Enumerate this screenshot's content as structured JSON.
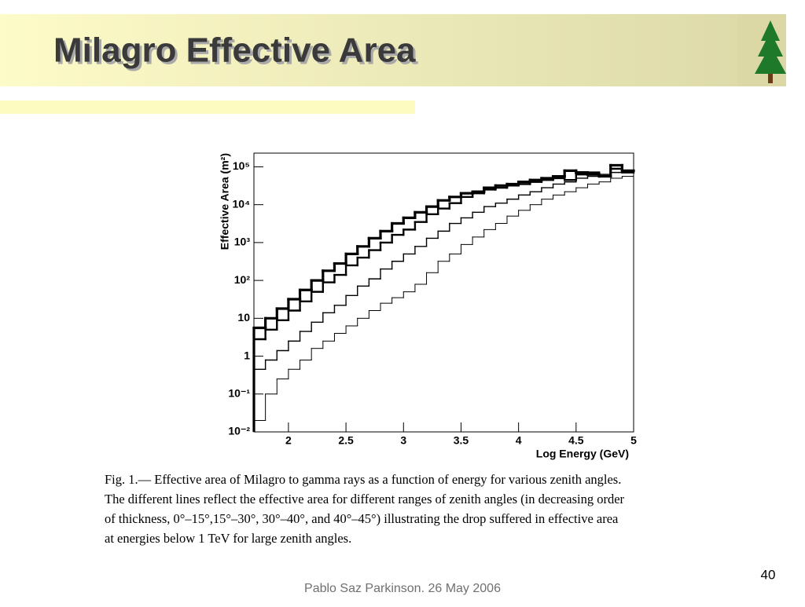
{
  "slide": {
    "title": "Milagro Effective Area",
    "caption": [
      "Fig. 1.— Effective area of Milagro to gamma rays as a function of energy for various zenith angles.",
      "The different lines reflect the effective area for different ranges of zenith angles (in decreasing order",
      "of thickness, 0°–15°,15°–30°, 30°–40°, and 40°–45°) illustrating the drop suffered in effective area",
      "at energies below 1 TeV for large zenith angles."
    ],
    "footer": "Pablo Saz Parkinson. 26 May 2006",
    "page_number": "40"
  },
  "chart_data": {
    "type": "histogram",
    "x_label": "Log Energy (GeV)",
    "y_label": "Effective Area (m²)",
    "y_log": true,
    "grid": false,
    "bins": [
      1.7,
      1.8,
      1.9,
      2.0,
      2.1,
      2.2,
      2.3,
      2.4,
      2.5,
      2.6,
      2.7,
      2.8,
      2.9,
      3.0,
      3.1,
      3.2,
      3.3,
      3.4,
      3.5,
      3.6,
      3.7,
      3.8,
      3.9,
      4.0,
      4.1,
      4.2,
      4.3,
      4.4,
      4.5,
      4.6,
      4.7,
      4.8,
      4.9,
      5.0
    ],
    "xlim": [
      1.7,
      5.0
    ],
    "xticks": [
      2,
      2.5,
      3,
      3.5,
      4,
      4.5,
      5
    ],
    "ylim": [
      0.01,
      230000
    ],
    "yticks": [
      {
        "value": 0.01,
        "label": "10⁻²"
      },
      {
        "value": 0.1,
        "label": "10⁻¹"
      },
      1,
      10,
      {
        "value": 100,
        "label": "10²"
      },
      {
        "value": 1000,
        "label": "10³"
      },
      {
        "value": 10000,
        "label": "10⁴"
      },
      {
        "value": 100000,
        "label": "10⁵"
      }
    ],
    "series": [
      {
        "color": "#000000",
        "line_width": 3.2,
        "values": [
          5.6,
          10,
          18,
          32,
          56,
          100,
          180,
          280,
          500,
          790,
          1300,
          2000,
          3200,
          4500,
          6300,
          8900,
          13000,
          16000,
          20000,
          22000,
          28000,
          32000,
          35000,
          40000,
          45000,
          50000,
          56000,
          79000,
          71000,
          63000,
          56000,
          110000,
          79000
        ]
      },
      {
        "color": "#000000",
        "line_width": 2.4,
        "values": [
          2.8,
          5,
          8.9,
          16,
          28,
          50,
          89,
          140,
          250,
          400,
          630,
          1000,
          1600,
          2200,
          3500,
          5600,
          7900,
          11000,
          16000,
          20000,
          25000,
          28000,
          32000,
          35000,
          40000,
          45000,
          50000,
          45000,
          63000,
          71000,
          56000,
          89000,
          71000
        ]
      },
      {
        "color": "#000000",
        "line_width": 1.4,
        "values": [
          0.45,
          0.79,
          1.4,
          2.5,
          4.5,
          7.9,
          14,
          22,
          40,
          71,
          110,
          200,
          320,
          500,
          790,
          1300,
          2000,
          3200,
          4500,
          6300,
          8900,
          11000,
          14000,
          18000,
          22000,
          28000,
          35000,
          40000,
          50000,
          56000,
          63000,
          71000,
          71000
        ]
      },
      {
        "color": "#000000",
        "line_width": 1,
        "values": [
          0.02,
          0.1,
          0.25,
          0.45,
          0.79,
          1.6,
          2.5,
          4,
          6.3,
          10,
          16,
          25,
          35,
          50,
          79,
          160,
          320,
          500,
          890,
          1400,
          2200,
          3200,
          5000,
          7100,
          10000,
          14000,
          18000,
          22000,
          28000,
          35000,
          40000,
          50000,
          56000
        ]
      }
    ]
  }
}
